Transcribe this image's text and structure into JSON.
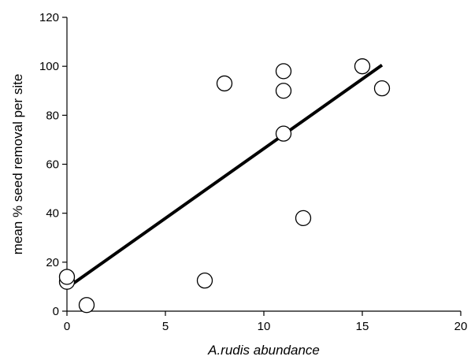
{
  "chart_data": {
    "type": "scatter",
    "title": "",
    "xlabel": "A.rudis abundance",
    "ylabel": "mean % seed removal per site",
    "xlim": [
      0,
      20
    ],
    "ylim": [
      0,
      120
    ],
    "x_ticks": [
      0,
      5,
      10,
      15,
      20
    ],
    "y_ticks": [
      0,
      20,
      40,
      60,
      80,
      100,
      120
    ],
    "x_tick_labels": [
      "0",
      "5",
      "10",
      "15",
      "20"
    ],
    "y_tick_labels": [
      "0",
      "20",
      "40",
      "60",
      "80",
      "100",
      "120"
    ],
    "grid": false,
    "legend": "none",
    "series": [
      {
        "points": [
          {
            "x": 0,
            "y": 12
          },
          {
            "x": 0,
            "y": 14
          },
          {
            "x": 1,
            "y": 2.5
          },
          {
            "x": 7,
            "y": 12.5
          },
          {
            "x": 8,
            "y": 93
          },
          {
            "x": 11,
            "y": 98
          },
          {
            "x": 11,
            "y": 90
          },
          {
            "x": 11,
            "y": 72.5
          },
          {
            "x": 12,
            "y": 38
          },
          {
            "x": 15,
            "y": 100
          },
          {
            "x": 16,
            "y": 91
          }
        ]
      }
    ],
    "fit_line": {
      "x1": 0,
      "y1": 9.5,
      "x2": 16,
      "y2": 100.5
    },
    "colors": {
      "marker_fill": "#ffffff",
      "marker_stroke": "#000000",
      "line": "#000000"
    }
  }
}
